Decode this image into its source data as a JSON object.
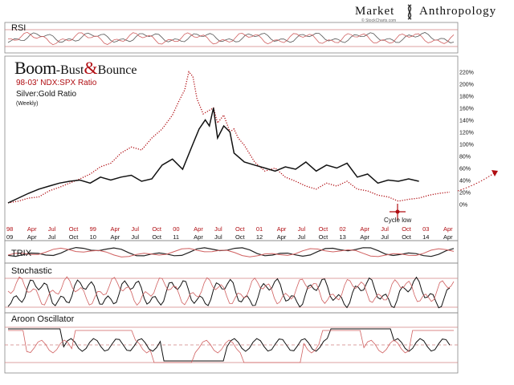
{
  "header": {
    "logo_left": "Market",
    "logo_right": "Anthropology",
    "logo_source": "© StockCharts.com"
  },
  "panels": {
    "rsi": "RSI",
    "trix": "TRIX",
    "stochastic": "Stochastic",
    "aroon": "Aroon Oscillator"
  },
  "main_title": {
    "boom": "Boom",
    "bust": "-Bust",
    "amp": "&",
    "bounce": "Bounce",
    "subtitle_red": "98-03' NDX:SPX Ratio",
    "subtitle_black": "Silver:Gold Ratio",
    "subtitle_small": "(Weekly)"
  },
  "annotation": {
    "cycle_low": "Cycle low"
  },
  "colors": {
    "red": "#b00d12",
    "black": "#111111",
    "grid": "#d9c4c4"
  },
  "chart_data": {
    "type": "line",
    "yunit": "%",
    "y_ticks": [
      "220%",
      "200%",
      "180%",
      "160%",
      "140%",
      "120%",
      "100%",
      "80%",
      "60%",
      "40%",
      "20%",
      "0%"
    ],
    "ylim": [
      -2,
      222
    ],
    "x_top_labels": [
      "98",
      "Apr",
      "Jul",
      "Oct",
      "99",
      "Apr",
      "Jul",
      "Oct",
      "00",
      "Apr",
      "Jul",
      "Oct",
      "01",
      "Apr",
      "Jul",
      "Oct",
      "02",
      "Apr",
      "Jul",
      "Oct",
      "03",
      "Apr"
    ],
    "x_bottom_labels": [
      "09",
      "Apr",
      "Jul",
      "Oct",
      "10",
      "Apr",
      "Jul",
      "Oct",
      "11",
      "Apr",
      "Jul",
      "Oct",
      "12",
      "Apr",
      "Jul",
      "Oct",
      "13",
      "Apr",
      "Jul",
      "Oct",
      "14",
      "Apr"
    ],
    "x_index": [
      0,
      1,
      2,
      3,
      4,
      5,
      6,
      7,
      8,
      9,
      10,
      11,
      12,
      13,
      14,
      15,
      16,
      17,
      18,
      19,
      20,
      21
    ],
    "series": [
      {
        "name": "98-03' NDX:SPX Ratio",
        "style": "dotted",
        "x": [
          0,
          0.5,
          1,
          1.5,
          2,
          2.5,
          3,
          3.5,
          4,
          4.5,
          5,
          5.5,
          6,
          6.5,
          7,
          7.5,
          8,
          8.3,
          8.6,
          8.8,
          9,
          9.2,
          9.5,
          10,
          10.2,
          10.5,
          10.8,
          11,
          11.2,
          11.5,
          12,
          12.5,
          13,
          13.5,
          14,
          14.5,
          15,
          15.5,
          16,
          16.5,
          17,
          17.5,
          18,
          18.5,
          19,
          19.5,
          20,
          20.5,
          21,
          21.5
        ],
        "values": [
          2,
          5,
          10,
          12,
          22,
          28,
          35,
          42,
          50,
          62,
          68,
          85,
          95,
          90,
          110,
          125,
          148,
          170,
          190,
          220,
          212,
          175,
          150,
          160,
          135,
          148,
          120,
          125,
          110,
          98,
          70,
          55,
          60,
          45,
          38,
          30,
          25,
          35,
          30,
          38,
          25,
          22,
          15,
          12,
          5,
          8,
          10,
          15,
          18,
          20
        ]
      },
      {
        "name": "Silver:Gold Ratio",
        "style": "solid",
        "x": [
          0,
          0.5,
          1,
          1.5,
          2,
          2.5,
          3,
          3.5,
          4,
          4.5,
          5,
          5.5,
          6,
          6.5,
          7,
          7.5,
          8,
          8.5,
          9,
          9.3,
          9.6,
          9.8,
          10,
          10.2,
          10.5,
          10.8,
          11,
          11.5,
          12,
          12.5,
          13,
          13.5,
          14,
          14.5,
          15,
          15.5,
          16,
          16.5,
          17,
          17.5,
          18,
          18.5,
          19,
          19.5,
          20
        ],
        "values": [
          2,
          10,
          18,
          25,
          30,
          35,
          38,
          40,
          35,
          45,
          40,
          45,
          48,
          38,
          42,
          65,
          75,
          58,
          100,
          125,
          140,
          130,
          160,
          110,
          130,
          120,
          85,
          70,
          65,
          60,
          55,
          62,
          58,
          70,
          55,
          65,
          60,
          68,
          45,
          50,
          35,
          40,
          38,
          42,
          38
        ]
      }
    ]
  }
}
